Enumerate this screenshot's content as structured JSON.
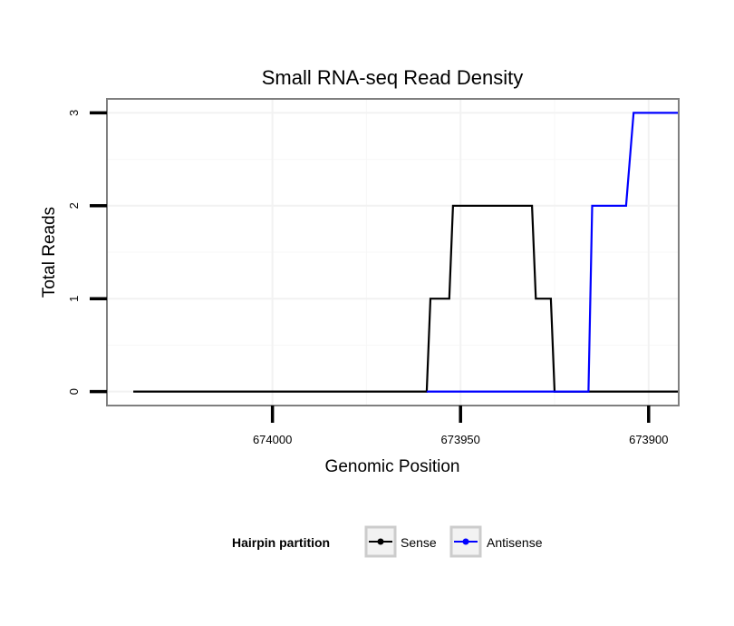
{
  "chart_data": {
    "type": "line",
    "title": "Small RNA-seq Read Density",
    "xlabel": "Genomic Position",
    "ylabel": "Total Reads",
    "xlim": [
      674044,
      673892
    ],
    "ylim": [
      -0.15,
      3.15
    ],
    "x_reversed": true,
    "x_ticks": [
      674000,
      673950,
      673900
    ],
    "x_tick_labels": [
      "674000",
      "673950",
      "673900"
    ],
    "y_ticks": [
      0,
      1,
      2,
      3
    ],
    "y_tick_labels": [
      "0",
      "1",
      "2",
      "3"
    ],
    "grid": true,
    "legend": {
      "title": "Hairpin partition",
      "position": "bottom",
      "entries": [
        "Sense",
        "Antisense"
      ]
    },
    "series": [
      {
        "name": "Sense",
        "color": "#000000",
        "x": [
          674037,
          673959,
          673958,
          673953,
          673952,
          673931,
          673930,
          673926,
          673925,
          673921,
          673920,
          673892
        ],
        "y": [
          0,
          0,
          1,
          1,
          2,
          2,
          1,
          1,
          0,
          0,
          0,
          0
        ]
      },
      {
        "name": "Antisense",
        "color": "#0000ff",
        "x": [
          673959,
          673916,
          673915,
          673911,
          673910,
          673906,
          673904,
          673892
        ],
        "y": [
          0,
          0,
          2,
          2,
          2,
          2,
          3,
          3
        ]
      }
    ]
  }
}
